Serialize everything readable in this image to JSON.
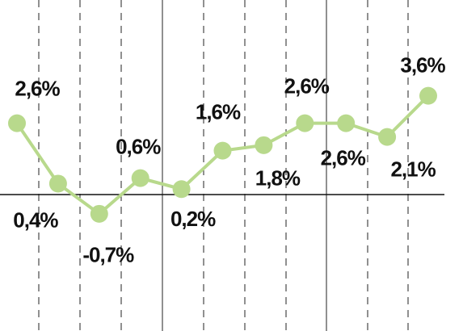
{
  "chart_data": {
    "type": "line",
    "categories": [
      null,
      null,
      null,
      null,
      null,
      null,
      null,
      null,
      null,
      null,
      null
    ],
    "series": [
      {
        "color": "#b8d98c",
        "values": [
          2.6,
          0.4,
          -0.7,
          0.6,
          0.2,
          1.6,
          1.8,
          2.6,
          2.6,
          2.1,
          3.6
        ],
        "value_labels": [
          "2,6%",
          "0,4%",
          "-0,7%",
          "0,6%",
          "0,2%",
          "1,6%",
          "1,8%",
          "2,6%",
          "2,6%",
          "2,1%",
          "3,6%"
        ]
      }
    ],
    "ylim": [
      -4.97,
      7.09
    ]
  }
}
